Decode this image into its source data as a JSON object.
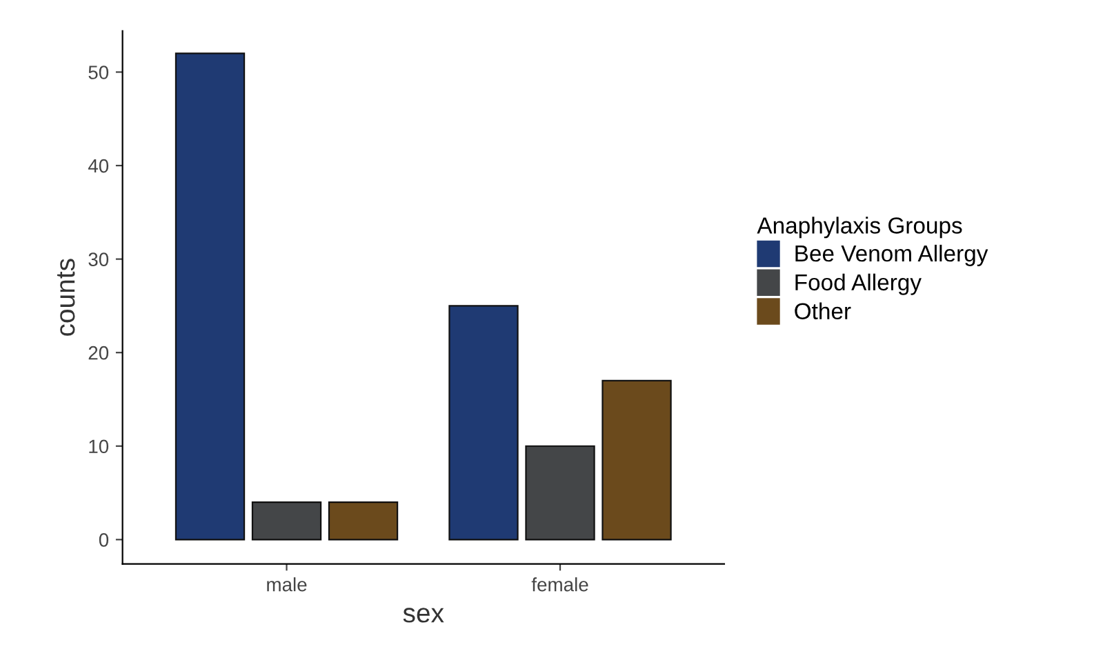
{
  "chart_data": {
    "type": "bar",
    "xlabel": "sex",
    "ylabel": "counts",
    "legend_title": "Anaphylaxis Groups",
    "categories": [
      "male",
      "female"
    ],
    "series": [
      {
        "name": "Bee Venom Allergy",
        "color": "#1f3a73",
        "values": [
          52,
          25
        ]
      },
      {
        "name": "Food Allergy",
        "color": "#444648",
        "values": [
          4,
          10
        ]
      },
      {
        "name": "Other",
        "color": "#6b4a1c",
        "values": [
          4,
          17
        ]
      }
    ],
    "ylim": [
      -2.6,
      54.4
    ],
    "yticks": [
      0,
      10,
      20,
      30,
      40,
      50
    ],
    "grid": false,
    "legend": "right"
  }
}
